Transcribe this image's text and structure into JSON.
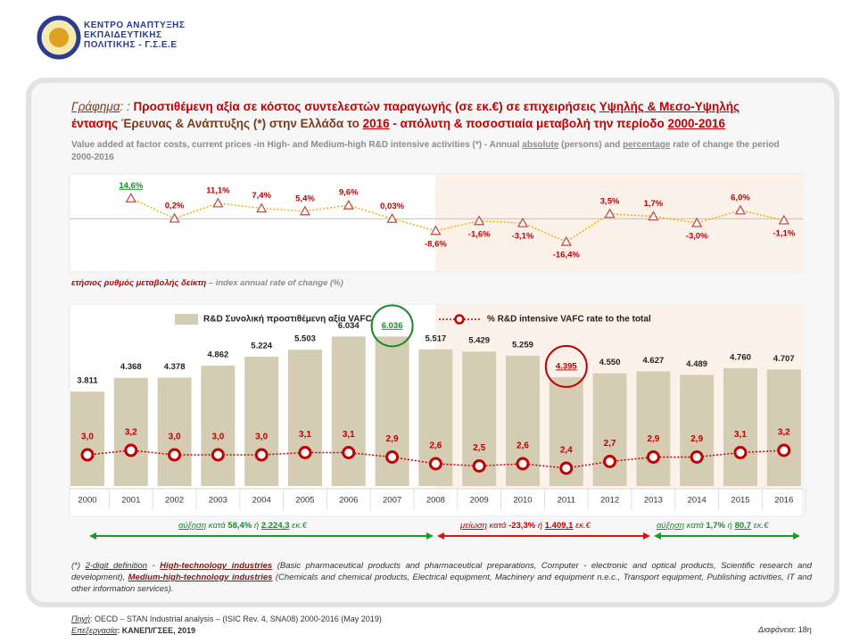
{
  "logo": {
    "lines": [
      "ΚΕΝΤΡΟ ΑΝΑΠΤΥΞΗΣ",
      "ΕΚΠΑΙΔΕΥΤΙΚΗΣ",
      "ΠΟΛΙΤΙΚΗΣ - Γ.Σ.Ε.Ε"
    ]
  },
  "title": [
    "Γράφημα",
    ": :",
    " Προστιθέμενη αξία σε κόστος συντελεστών παραγωγής (σε εκ.€) σε επιχειρήσεις ",
    "Υψηλής & Μεσο-Υψηλής",
    " έντασης",
    " Έρευνας & Ανάπτυξης (*) στην Ελλάδα το ",
    "2016",
    " - απόλυτη & ποσοστιαία μεταβολή την περίοδο ",
    "2000-2016"
  ],
  "subtitle": [
    "Value added at factor costs, current prices -in High- and Medium-high R&D intensive activities (*) - Annual ",
    "absolute",
    " (persons) and ",
    "percentage",
    " rate of change the period 2000-2016"
  ],
  "chart_data": [
    {
      "type": "line",
      "label": [
        "ετήσιος ρυθμός μεταβολής δείκτη",
        " – index annual rate of change (%)"
      ],
      "values": [
        14.6,
        0.2,
        11.1,
        7.4,
        5.4,
        9.6,
        0.03,
        -8.6,
        -1.6,
        -3.1,
        -16.4,
        3.5,
        1.7,
        -3.0,
        6.0,
        -1.1
      ],
      "value_labels": [
        "14,6%",
        "0,2%",
        "11,1%",
        "7,4%",
        "5,4%",
        "9,6%",
        "0,03%",
        "-8,6%",
        "-1,6%",
        "-3,1%",
        "-16,4%",
        "3,5%",
        "1,7%",
        "-3,0%",
        "6,0%",
        "-1,1%"
      ],
      "color": "#f0b000",
      "ylim": [
        -38,
        32
      ]
    },
    {
      "type": "bar",
      "categories": [
        "2000",
        "2001",
        "2002",
        "2003",
        "2004",
        "2005",
        "2006",
        "2007",
        "2008",
        "2009",
        "2010",
        "2011",
        "2012",
        "2013",
        "2014",
        "2015",
        "2016"
      ],
      "series": [
        {
          "name": "R&D Συνολική προστιθέμενη αξία VAFC",
          "color": "#d5ccb4",
          "values": [
            3811,
            4368,
            4378,
            4862,
            5224,
            5503,
            6034,
            6036,
            5517,
            5429,
            5259,
            4395,
            4550,
            4627,
            4489,
            4760,
            4707
          ],
          "value_labels": [
            "3.811",
            "4.368",
            "4.378",
            "4.862",
            "5.224",
            "5.503",
            "6.034",
            "6.036",
            "5.517",
            "5.429",
            "5.259",
            "4.395",
            "4.550",
            "4.627",
            "4.489",
            "4.760",
            "4.707"
          ]
        },
        {
          "name": "% R&D intensive VAFC rate to the total",
          "color": "#c00000",
          "type": "line",
          "axis": "y2",
          "values": [
            3.0,
            3.2,
            3.0,
            3.0,
            3.0,
            3.1,
            3.1,
            2.9,
            2.6,
            2.5,
            2.6,
            2.4,
            2.7,
            2.9,
            2.9,
            3.1,
            3.2
          ],
          "value_labels": [
            "3,0",
            "3,2",
            "3,0",
            "3,0",
            "3,0",
            "3,1",
            "3,1",
            "2,9",
            "2,6",
            "2,5",
            "2,6",
            "2,4",
            "2,7",
            "2,9",
            "2,9",
            "3,1",
            "3,2"
          ]
        }
      ],
      "ylim": [
        0,
        7200
      ],
      "y2lim": [
        1.6,
        9.6
      ]
    }
  ],
  "annotations": [
    {
      "parts": [
        "αύξηση",
        " κατά ",
        "58,4%",
        " ή ",
        "2.224,3",
        " εκ.€"
      ]
    },
    {
      "parts": [
        "μείωση",
        " κατά ",
        "-23,3%",
        " ή ",
        "1.409,1",
        " εκ.€"
      ]
    },
    {
      "parts": [
        "αύξηση",
        " κατά ",
        "1,7%",
        " ή ",
        "80,7",
        " εκ.€"
      ]
    }
  ],
  "footnote": [
    "(*) ",
    "2-digit definition",
    " - ",
    "High-technology industries",
    " (Basic pharmaceutical products and pharmaceutical preparations, Computer - electronic and optical products, Scientific research and development), ",
    "Medium-high-technology industries",
    " (Chemicals and chemical products, Electrical equipment, Machinery and equipment n.e.c., Transport equipment, Publishing activities, IT and other information services)."
  ],
  "source": {
    "label": "Πηγή",
    "text": ": OECD – STAN Industrial analysis – (ISIC Rev. 4, SNA08) 2000-2016 (May 2019)",
    "label2": "Επεξεργασία",
    "text2": ":  ΚΑΝΕΠ/ΓΣΕΕ, 2019"
  },
  "slide": {
    "label": "Διαφάνεια",
    "text": ": 18η"
  }
}
